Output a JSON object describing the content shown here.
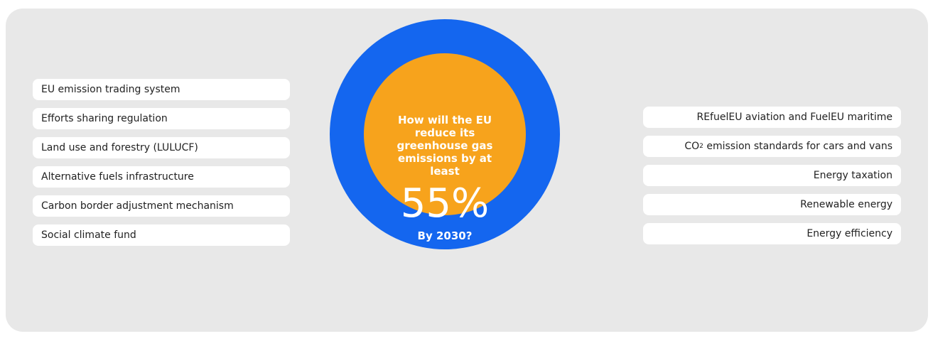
{
  "colors": {
    "panel": "#e8e8e8",
    "ring": "#1466ef",
    "core": "#f7a31c"
  },
  "center": {
    "question": [
      "How will the EU",
      "reduce its",
      "greenhouse gas",
      "emissions by at",
      "least"
    ],
    "percent": "55%",
    "year": "By 2030?"
  },
  "left_items": [
    "EU emission trading system",
    "Efforts sharing regulation",
    "Land use and forestry (LULUCF)",
    "Alternative fuels infrastructure",
    "Carbon border adjustment mechanism",
    "Social climate fund"
  ],
  "right_items": [
    "REfuelEU aviation and FuelEU maritime",
    {
      "pre": "CO",
      "sub": "2",
      "post": " emission standards for cars and vans"
    },
    "Energy taxation",
    "Renewable energy",
    "Energy efficiency"
  ]
}
